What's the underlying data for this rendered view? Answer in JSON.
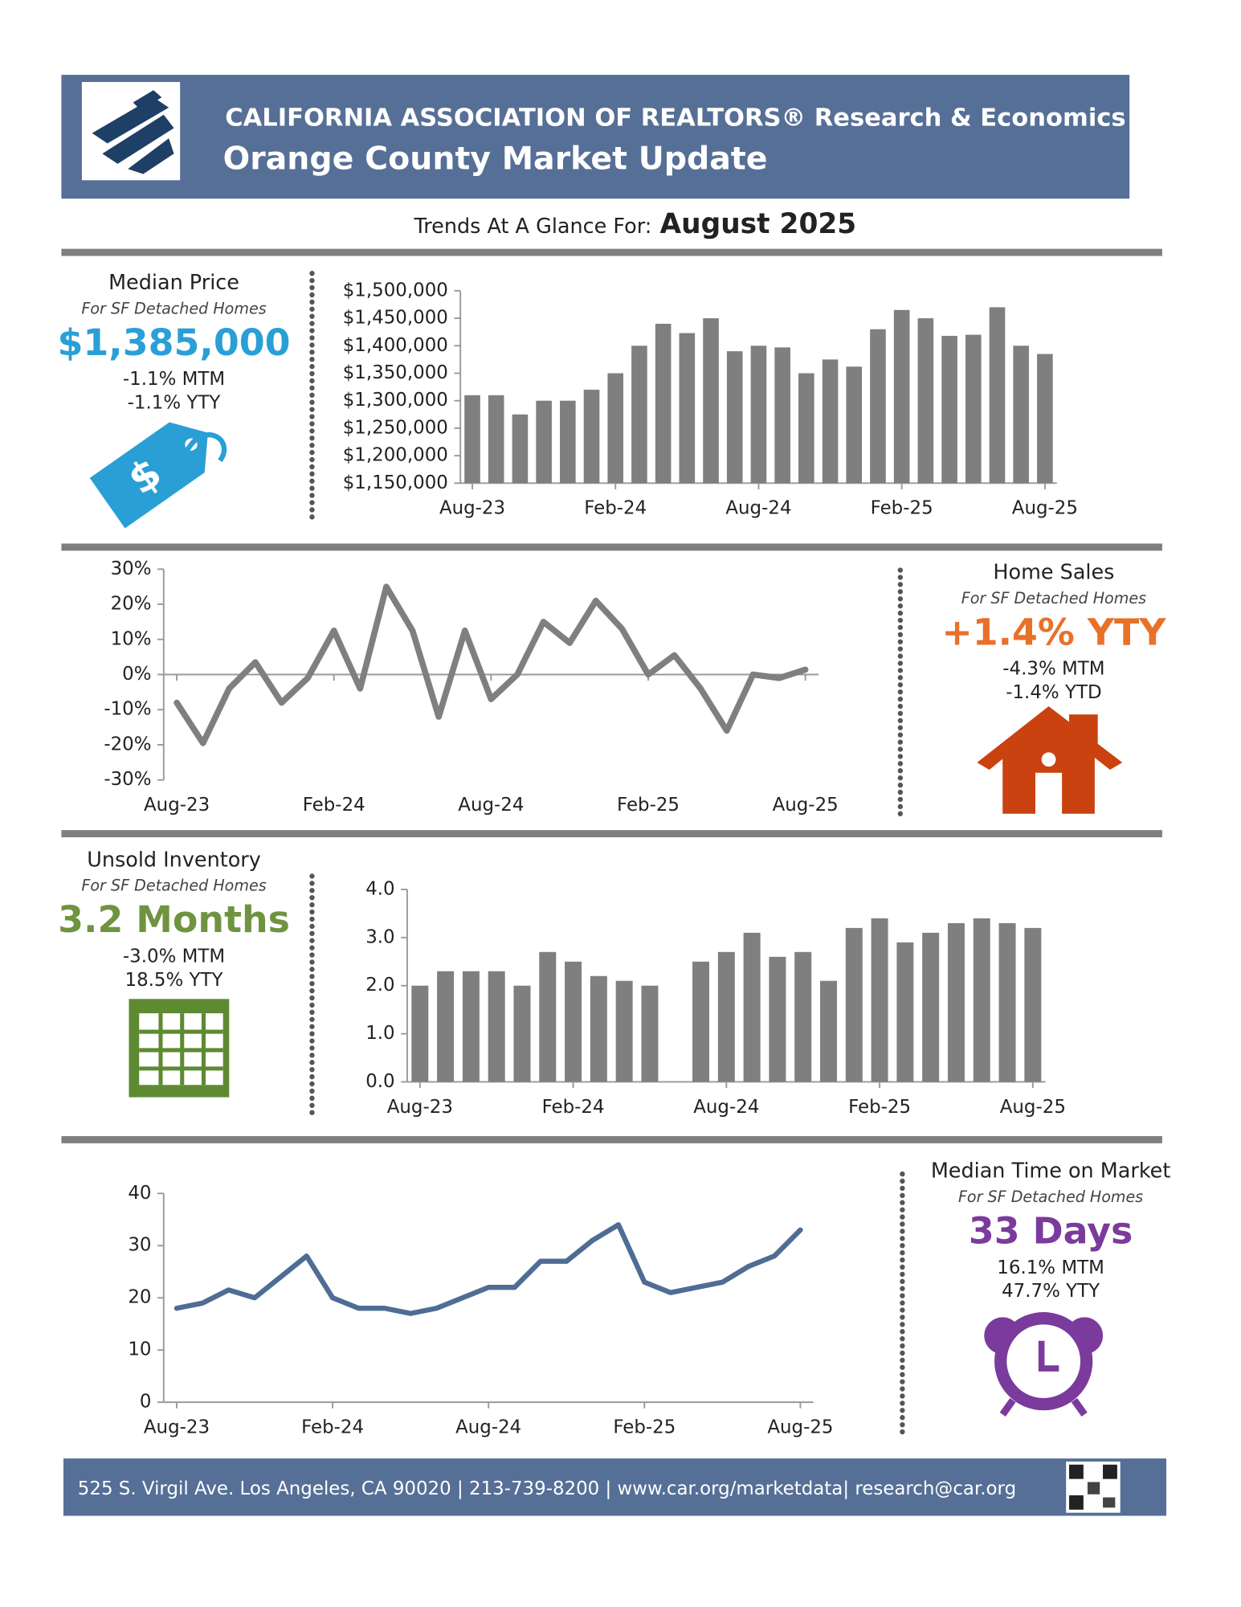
{
  "header": {
    "title": "CALIFORNIA ASSOCIATION OF REALTORS® Research & Economics",
    "subtitle": "Orange County Market Update"
  },
  "period": {
    "label": "Trends At A Glance For:",
    "value": "August 2025"
  },
  "panels": [
    {
      "title": "Median Price",
      "subtitle": "For SF Detached Homes",
      "value": "$1,385,000",
      "lines": [
        "-1.1% MTM",
        "-1.1% YTY"
      ],
      "color": "#2a9fd6"
    },
    {
      "title": "Home Sales",
      "subtitle": "For SF Detached Homes",
      "value": "+1.4% YTY",
      "lines": [
        "-4.3% MTM",
        "-1.4% YTD"
      ],
      "color": "#e8712a"
    },
    {
      "title": "Unsold Inventory",
      "subtitle": "For SF Detached Homes",
      "value": "3.2 Months",
      "lines": [
        "-3.0% MTM",
        "18.5% YTY"
      ],
      "color": "#6f9440"
    },
    {
      "title": "Median Time on Market",
      "subtitle": "For SF Detached Homes",
      "value": "33 Days",
      "lines": [
        "16.1% MTM",
        "47.7% YTY"
      ],
      "color": "#7a3b9c"
    }
  ],
  "chart_data": [
    {
      "type": "bar",
      "color": "#7f7f7f",
      "categories": [
        "Aug-23",
        null,
        null,
        null,
        null,
        null,
        "Feb-24",
        null,
        null,
        null,
        null,
        null,
        "Aug-24",
        null,
        null,
        null,
        null,
        null,
        "Feb-25",
        null,
        null,
        null,
        null,
        null,
        "Aug-25"
      ],
      "values": [
        1310000,
        1310000,
        1275000,
        1300000,
        1300000,
        1320000,
        1350000,
        1400000,
        1440000,
        1423000,
        1450000,
        1390000,
        1400000,
        1397000,
        1350000,
        1375000,
        1362000,
        1430000,
        1465000,
        1450000,
        1418000,
        1420000,
        1470000,
        1400000,
        1385000
      ],
      "ylim": [
        1150000,
        1500000
      ],
      "yticks": [
        {
          "value": 1150000,
          "label": "$1,150,000"
        },
        {
          "value": 1200000,
          "label": "$1,200,000"
        },
        {
          "value": 1250000,
          "label": "$1,250,000"
        },
        {
          "value": 1300000,
          "label": "$1,300,000"
        },
        {
          "value": 1350000,
          "label": "$1,350,000"
        },
        {
          "value": 1400000,
          "label": "$1,400,000"
        },
        {
          "value": 1450000,
          "label": "$1,450,000"
        },
        {
          "value": 1500000,
          "label": "$1,500,000"
        }
      ]
    },
    {
      "type": "line",
      "color": "#7f7f7f",
      "categories": [
        "Aug-23",
        null,
        null,
        null,
        null,
        null,
        "Feb-24",
        null,
        null,
        null,
        null,
        null,
        "Aug-24",
        null,
        null,
        null,
        null,
        null,
        "Feb-25",
        null,
        null,
        null,
        null,
        null,
        "Aug-25"
      ],
      "values": [
        -8,
        -19.5,
        -4,
        3.5,
        -8,
        -1,
        12.5,
        -4,
        25,
        12.5,
        -12,
        12.5,
        -7,
        0,
        15,
        9,
        21,
        13,
        0,
        5.5,
        -4,
        -16,
        0,
        -1,
        1.4
      ],
      "ylim": [
        -30,
        30
      ],
      "yticks": [
        {
          "value": -30,
          "label": "-30%"
        },
        {
          "value": -20,
          "label": "-20%"
        },
        {
          "value": -10,
          "label": "-10%"
        },
        {
          "value": 0,
          "label": "0%"
        },
        {
          "value": 10,
          "label": "10%"
        },
        {
          "value": 20,
          "label": "20%"
        },
        {
          "value": 30,
          "label": "30%"
        }
      ]
    },
    {
      "type": "bar",
      "color": "#7f7f7f",
      "categories": [
        "Aug-23",
        null,
        null,
        null,
        null,
        null,
        "Feb-24",
        null,
        null,
        null,
        null,
        null,
        "Aug-24",
        null,
        null,
        null,
        null,
        null,
        "Feb-25",
        null,
        null,
        null,
        null,
        null,
        "Aug-25"
      ],
      "values": [
        2.0,
        2.3,
        2.3,
        2.3,
        2.0,
        2.7,
        2.5,
        2.2,
        2.1,
        2.0,
        null,
        2.5,
        2.7,
        3.1,
        2.6,
        2.7,
        2.1,
        3.2,
        3.4,
        2.9,
        3.1,
        3.3,
        3.4,
        3.3,
        3.2
      ],
      "ylim": [
        0,
        4
      ],
      "yticks": [
        {
          "value": 0,
          "label": "0.0"
        },
        {
          "value": 1,
          "label": "1.0"
        },
        {
          "value": 2,
          "label": "2.0"
        },
        {
          "value": 3,
          "label": "3.0"
        },
        {
          "value": 4,
          "label": "4.0"
        }
      ]
    },
    {
      "type": "line",
      "color": "#4f6d94",
      "categories": [
        "Aug-23",
        null,
        null,
        null,
        null,
        null,
        "Feb-24",
        null,
        null,
        null,
        null,
        null,
        "Aug-24",
        null,
        null,
        null,
        null,
        null,
        "Feb-25",
        null,
        null,
        null,
        null,
        null,
        "Aug-25"
      ],
      "values": [
        18,
        19,
        21.5,
        20,
        24,
        28,
        20,
        18,
        18,
        17,
        18,
        20,
        22,
        22,
        27,
        27,
        31,
        34,
        23,
        21,
        22,
        23,
        26,
        28,
        33
      ],
      "ylim": [
        0,
        40
      ],
      "yticks": [
        0,
        10,
        20,
        30,
        40
      ]
    }
  ],
  "footer": {
    "text": "525 S. Virgil Ave. Los Angeles, CA 90020 | 213-739-8200 | www.car.org/marketdata| research@car.org"
  }
}
